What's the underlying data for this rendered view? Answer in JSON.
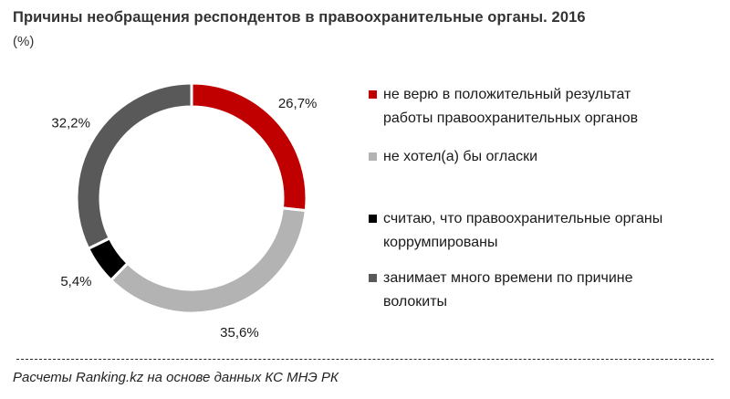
{
  "header": {
    "title": "Причины необращения респондентов в правоохранительные органы. 2016",
    "unit": "(%)"
  },
  "chart_data": {
    "type": "pie",
    "donut": true,
    "categories": [
      "не верю в положительный результат работы правоохранительных органов",
      "не хотел(а) бы огласки",
      "считаю, что правоохранительные органы коррумпированы",
      "занимает много времени по причине волокиты"
    ],
    "values": [
      26.7,
      35.6,
      5.4,
      32.2
    ],
    "value_labels": [
      "26,7%",
      "35,6%",
      "5,4%",
      "32,2%"
    ],
    "colors": [
      "#c00000",
      "#b3b3b3",
      "#000000",
      "#595959"
    ],
    "legend_placement": "right",
    "title": "Причины необращения респондентов в правоохранительные органы. 2016"
  },
  "legend": {
    "items": [
      {
        "label_line1": "не верю в положительный результат",
        "label_line2": "работы  правоохранительных органов",
        "color": "#c00000"
      },
      {
        "label_line1": "не хотел(а) бы огласки",
        "label_line2": "",
        "color": "#b3b3b3"
      },
      {
        "label_line1": "считаю, что правоохранительные органы",
        "label_line2": "коррумпированы",
        "color": "#000000"
      },
      {
        "label_line1": "занимает много времени по причине",
        "label_line2": "волокиты",
        "color": "#595959"
      }
    ]
  },
  "footer": {
    "source": "Расчеты Ranking.kz на основе данных  КС МНЭ РК"
  }
}
